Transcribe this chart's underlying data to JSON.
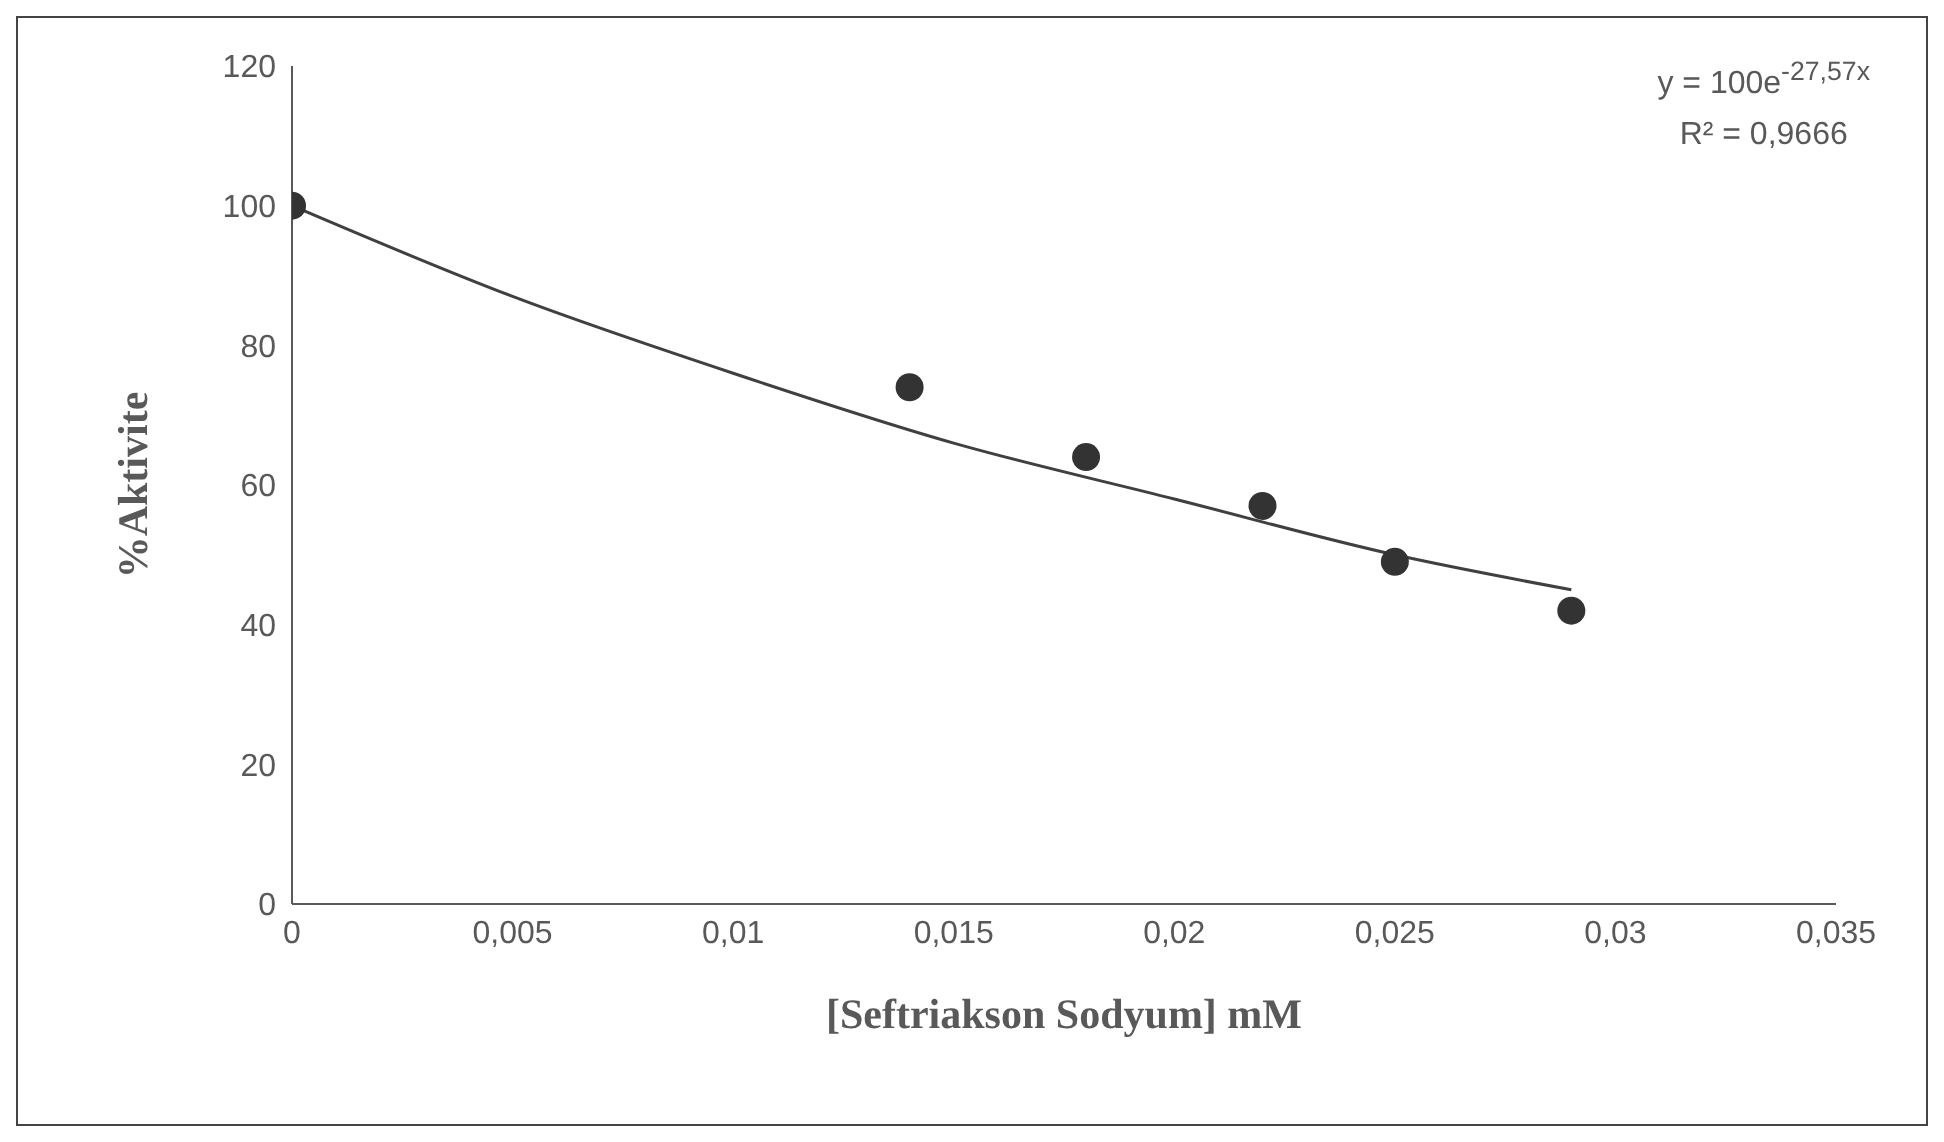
{
  "chart_data": {
    "type": "scatter",
    "xlabel": "[Seftriakson Sodyum] mM",
    "ylabel": "%Aktivite",
    "x": [
      0,
      0.014,
      0.018,
      0.022,
      0.025,
      0.029
    ],
    "series": [
      {
        "color": "#333333",
        "values": [
          100,
          74,
          64,
          57,
          49,
          42
        ],
        "marker": "circle"
      },
      {
        "type": "line",
        "color": "#404040",
        "x": [
          0,
          0.005,
          0.01,
          0.015,
          0.02,
          0.025,
          0.029
        ],
        "values": [
          100,
          87,
          76,
          66,
          58,
          50,
          45
        ],
        "marker": "none",
        "line_style": "solid"
      }
    ],
    "xlim": [
      0,
      0.035
    ],
    "xticks": [
      {
        "value": 0,
        "label": "0"
      },
      {
        "value": 0.005,
        "label": "0,005"
      },
      {
        "value": 0.01,
        "label": "0,01"
      },
      {
        "value": 0.015,
        "label": "0,015"
      },
      {
        "value": 0.02,
        "label": "0,02"
      },
      {
        "value": 0.025,
        "label": "0,025"
      },
      {
        "value": 0.03,
        "label": "0,03"
      },
      {
        "value": 0.035,
        "label": "0,035"
      }
    ],
    "ylim": [
      0,
      120
    ],
    "yticks": [
      0,
      20,
      40,
      60,
      80,
      100,
      120
    ],
    "annotations": [
      "y = 100e$^{-27,57x}$",
      "R² = 0,9666"
    ]
  }
}
